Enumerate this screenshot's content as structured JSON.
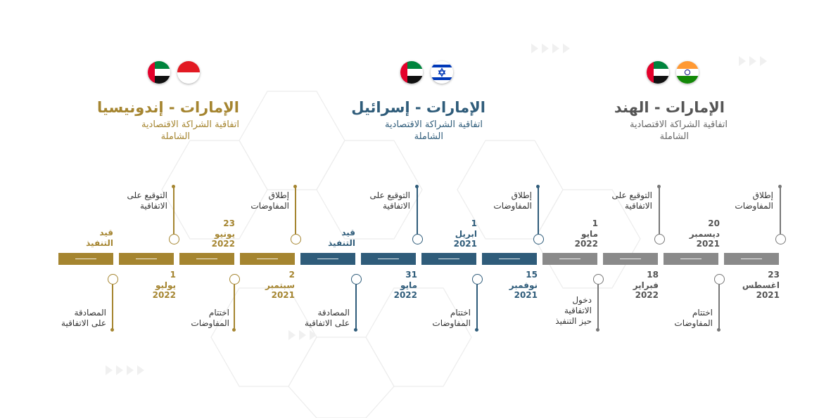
{
  "colors": {
    "indonesia": "#a58530",
    "israel": "#2f5c7a",
    "india": "#8a8a8a"
  },
  "groups": [
    {
      "id": "indonesia",
      "title": "الإمارات - إندونيسيا",
      "subtitle_line1": "اتفاقية الشراكة الاقتصادية",
      "subtitle_line2": "الشاملة",
      "flags": [
        "uae-flag",
        "indonesia-flag"
      ]
    },
    {
      "id": "israel",
      "title": "الإمارات - إسرائيل",
      "subtitle_line1": "اتفاقية الشراكة الاقتصادية",
      "subtitle_line2": "الشاملة",
      "flags": [
        "uae-flag",
        "israel-flag"
      ]
    },
    {
      "id": "india",
      "title": "الإمارات - الهند",
      "subtitle_line1": "اتفاقية الشراكة الاقتصادية",
      "subtitle_line2": "الشاملة",
      "flags": [
        "uae-flag",
        "india-flag"
      ]
    }
  ],
  "milestones": {
    "indonesia": {
      "enforcement": {
        "line1": "قيد",
        "line2": "التنفيذ"
      },
      "ratification": {
        "line1": "المصادقة",
        "line2": "على الاتفاقية"
      },
      "ratification_date": {
        "day": "1",
        "month": "يوليو",
        "year": "2022"
      },
      "signing": {
        "line1": "التوقيع على",
        "line2": "الاتفاقية"
      },
      "signing_date": {
        "day": "23",
        "month": "يونيو",
        "year": "2022"
      },
      "conclusion": {
        "line1": "اختتام",
        "line2": "المفاوضات"
      },
      "launch": {
        "line1": "إطلاق",
        "line2": "المفاوضات"
      },
      "launch_date": {
        "day": "2",
        "month": "سبتمبر",
        "year": "2021"
      }
    },
    "israel": {
      "enforcement": {
        "line1": "قيد",
        "line2": "التنفيذ"
      },
      "ratification": {
        "line1": "المصادقة",
        "line2": "على الاتفاقية"
      },
      "signing": {
        "line1": "التوقيع على",
        "line2": "الاتفاقية"
      },
      "signing_date": {
        "day": "31",
        "month": "مايو",
        "year": "2022"
      },
      "conclusion": {
        "line1": "اختتام",
        "line2": "المفاوضات"
      },
      "conclusion_date": {
        "day": "1",
        "month": "ابريل",
        "year": "2021"
      },
      "launch": {
        "line1": "إطلاق",
        "line2": "المفاوضات"
      },
      "launch_date": {
        "day": "15",
        "month": "نوفمبر",
        "year": "2021"
      }
    },
    "india": {
      "entry_into_force": {
        "line1": "دخول",
        "line2": "الاتفاقية",
        "line3": "حيز التنفيذ"
      },
      "entry_date": {
        "day": "1",
        "month": "مايو",
        "year": "2022"
      },
      "signing": {
        "line1": "التوقيع على",
        "line2": "الاتفاقية"
      },
      "signing_date": {
        "day": "18",
        "month": "فبراير",
        "year": "2022"
      },
      "conclusion": {
        "line1": "اختتام",
        "line2": "المفاوضات"
      },
      "conclusion_date": {
        "day": "20",
        "month": "ديسمبر",
        "year": "2021"
      },
      "launch": {
        "line1": "إطلاق",
        "line2": "المفاوضات"
      },
      "launch_date": {
        "day": "23",
        "month": "اغسطس",
        "year": "2021"
      }
    }
  }
}
